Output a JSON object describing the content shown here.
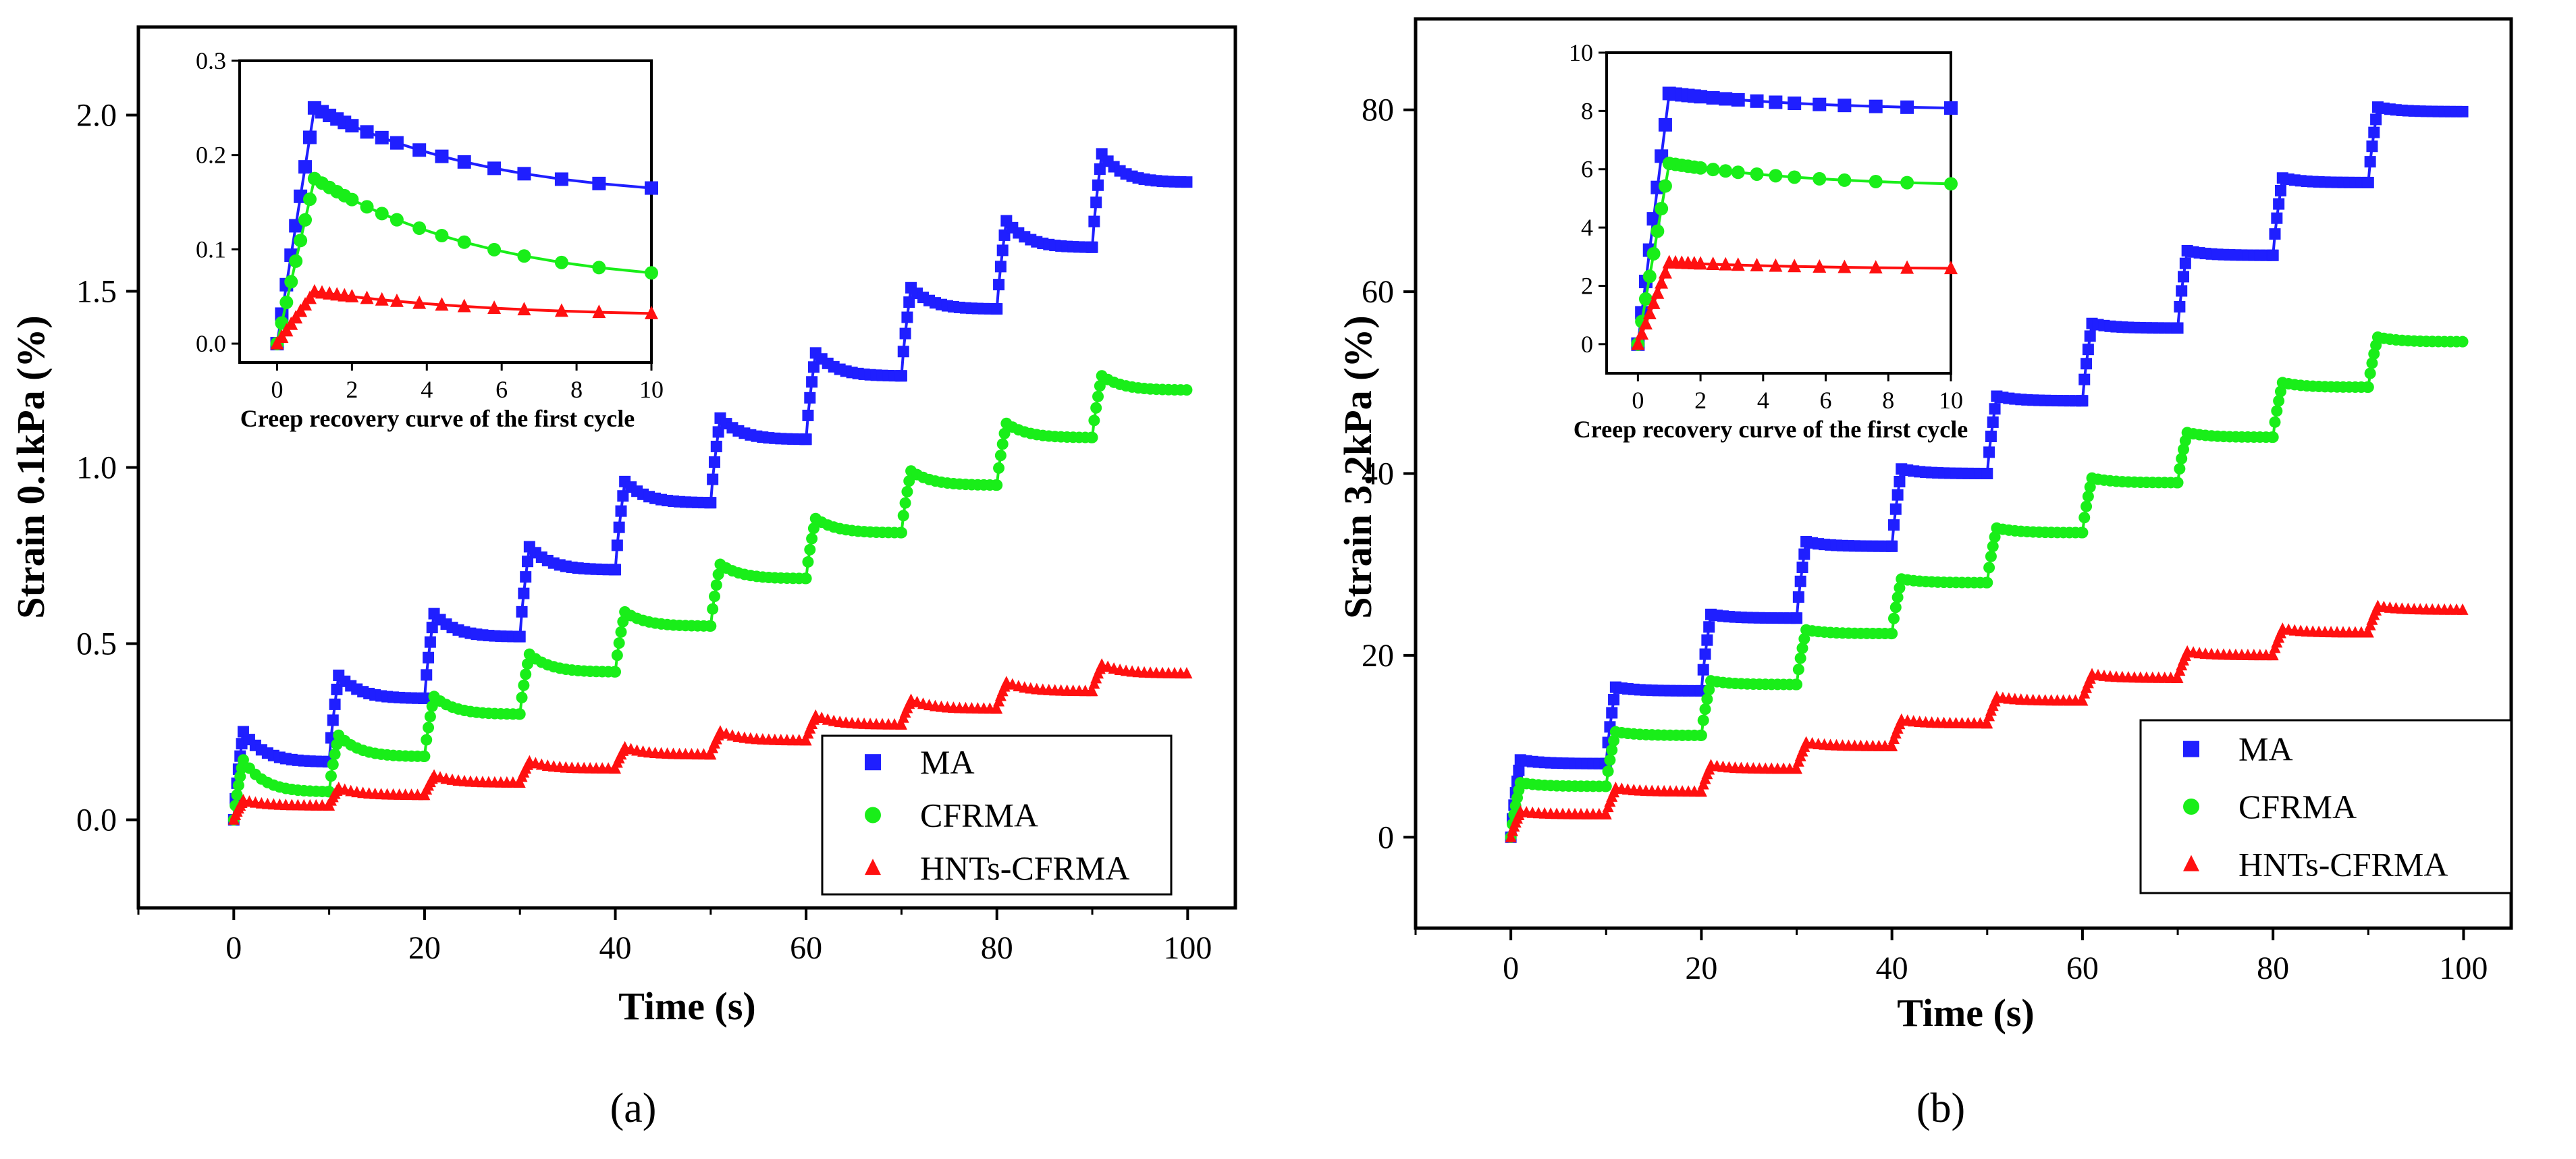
{
  "chart_data": [
    {
      "id": "a",
      "type": "scatter",
      "panel_label": "(a)",
      "xlabel": "Time (s)",
      "ylabel": "Strain 0.1kPa (%)",
      "xlim": [
        -10,
        105
      ],
      "ylim": [
        -0.25,
        2.25
      ],
      "xticks": [
        0,
        20,
        40,
        60,
        80,
        100
      ],
      "yticks": [
        0.0,
        0.5,
        1.0,
        1.5,
        2.0
      ],
      "legend": [
        "MA",
        "CFRMA",
        "HNTs-CFRMA"
      ],
      "legend_position": "bottom-right",
      "series": [
        {
          "name": "MA",
          "color": "#1f1fff",
          "marker": "square",
          "cycles": [
            {
              "start": 0.0,
              "peak": 0.25,
              "end": 0.165
            },
            {
              "start": 0.165,
              "peak": 0.41,
              "end": 0.345
            },
            {
              "start": 0.345,
              "peak": 0.585,
              "end": 0.52
            },
            {
              "start": 0.52,
              "peak": 0.775,
              "end": 0.71
            },
            {
              "start": 0.71,
              "peak": 0.96,
              "end": 0.9
            },
            {
              "start": 0.9,
              "peak": 1.14,
              "end": 1.08
            },
            {
              "start": 1.08,
              "peak": 1.325,
              "end": 1.26
            },
            {
              "start": 1.26,
              "peak": 1.51,
              "end": 1.45
            },
            {
              "start": 1.45,
              "peak": 1.7,
              "end": 1.625
            },
            {
              "start": 1.625,
              "peak": 1.89,
              "end": 1.81
            }
          ]
        },
        {
          "name": "CFRMA",
          "color": "#19ee19",
          "marker": "circle",
          "cycles": [
            {
              "start": 0.0,
              "peak": 0.17,
              "end": 0.08
            },
            {
              "start": 0.08,
              "peak": 0.24,
              "end": 0.18
            },
            {
              "start": 0.18,
              "peak": 0.35,
              "end": 0.3
            },
            {
              "start": 0.3,
              "peak": 0.47,
              "end": 0.42
            },
            {
              "start": 0.42,
              "peak": 0.59,
              "end": 0.55
            },
            {
              "start": 0.55,
              "peak": 0.725,
              "end": 0.685
            },
            {
              "start": 0.685,
              "peak": 0.855,
              "end": 0.815
            },
            {
              "start": 0.815,
              "peak": 0.99,
              "end": 0.95
            },
            {
              "start": 0.95,
              "peak": 1.125,
              "end": 1.085
            },
            {
              "start": 1.085,
              "peak": 1.26,
              "end": 1.22
            }
          ]
        },
        {
          "name": "HNTs-CFRMA",
          "color": "#ff1010",
          "marker": "triangle",
          "cycles": [
            {
              "start": 0.0,
              "peak": 0.055,
              "end": 0.04
            },
            {
              "start": 0.04,
              "peak": 0.09,
              "end": 0.07
            },
            {
              "start": 0.07,
              "peak": 0.125,
              "end": 0.105
            },
            {
              "start": 0.105,
              "peak": 0.165,
              "end": 0.145
            },
            {
              "start": 0.145,
              "peak": 0.205,
              "end": 0.185
            },
            {
              "start": 0.185,
              "peak": 0.25,
              "end": 0.225
            },
            {
              "start": 0.225,
              "peak": 0.295,
              "end": 0.27
            },
            {
              "start": 0.27,
              "peak": 0.34,
              "end": 0.315
            },
            {
              "start": 0.315,
              "peak": 0.39,
              "end": 0.365
            },
            {
              "start": 0.365,
              "peak": 0.44,
              "end": 0.415
            }
          ]
        }
      ],
      "inset": {
        "caption": "Creep recovery curve of the first cycle",
        "xlim": [
          -1,
          10
        ],
        "ylim": [
          -0.02,
          0.3
        ],
        "xticks": [
          0,
          2,
          4,
          6,
          8,
          10
        ],
        "yticks": [
          0.0,
          0.1,
          0.2,
          0.3
        ],
        "series": [
          {
            "name": "MA",
            "peak": 0.25,
            "end": 0.165
          },
          {
            "name": "CFRMA",
            "peak": 0.175,
            "end": 0.075
          },
          {
            "name": "HNTs-CFRMA",
            "peak": 0.055,
            "end": 0.032
          }
        ]
      }
    },
    {
      "id": "b",
      "type": "scatter",
      "panel_label": "(b)",
      "xlabel": "Time (s)",
      "ylabel": "Strain 3.2kPa (%)",
      "xlim": [
        -10,
        105
      ],
      "ylim": [
        -10,
        90
      ],
      "xticks": [
        0,
        20,
        40,
        60,
        80,
        100
      ],
      "yticks": [
        0,
        20,
        40,
        60,
        80
      ],
      "legend": [
        "MA",
        "CFRMA",
        "HNTs-CFRMA"
      ],
      "legend_position": "bottom-right",
      "series": [
        {
          "name": "MA",
          "color": "#1f1fff",
          "marker": "square",
          "cycles": [
            {
              "start": 0,
              "peak": 8.5,
              "end": 8.1
            },
            {
              "start": 8.1,
              "peak": 16.5,
              "end": 16.1
            },
            {
              "start": 16.1,
              "peak": 24.5,
              "end": 24.1
            },
            {
              "start": 24.1,
              "peak": 32.5,
              "end": 32.0
            },
            {
              "start": 32.0,
              "peak": 40.5,
              "end": 40.0
            },
            {
              "start": 40.0,
              "peak": 48.5,
              "end": 48.0
            },
            {
              "start": 48.0,
              "peak": 56.5,
              "end": 56.0
            },
            {
              "start": 56.0,
              "peak": 64.5,
              "end": 64.0
            },
            {
              "start": 64.0,
              "peak": 72.5,
              "end": 72.0
            },
            {
              "start": 72.0,
              "peak": 80.3,
              "end": 79.8
            }
          ]
        },
        {
          "name": "CFRMA",
          "color": "#19ee19",
          "marker": "circle",
          "cycles": [
            {
              "start": 0,
              "peak": 6.0,
              "end": 5.6
            },
            {
              "start": 5.6,
              "peak": 11.6,
              "end": 11.2
            },
            {
              "start": 11.2,
              "peak": 17.2,
              "end": 16.8
            },
            {
              "start": 16.8,
              "peak": 22.8,
              "end": 22.4
            },
            {
              "start": 22.4,
              "peak": 28.4,
              "end": 28.0
            },
            {
              "start": 28.0,
              "peak": 34.0,
              "end": 33.5
            },
            {
              "start": 33.5,
              "peak": 39.5,
              "end": 39.0
            },
            {
              "start": 39.0,
              "peak": 44.5,
              "end": 44.0
            },
            {
              "start": 44.0,
              "peak": 50.0,
              "end": 49.5
            },
            {
              "start": 49.5,
              "peak": 55.0,
              "end": 54.5
            }
          ]
        },
        {
          "name": "HNTs-CFRMA",
          "color": "#ff1010",
          "marker": "triangle",
          "cycles": [
            {
              "start": 0,
              "peak": 2.8,
              "end": 2.5
            },
            {
              "start": 2.5,
              "peak": 5.4,
              "end": 5.0
            },
            {
              "start": 5.0,
              "peak": 7.9,
              "end": 7.5
            },
            {
              "start": 7.5,
              "peak": 10.4,
              "end": 10.0
            },
            {
              "start": 10.0,
              "peak": 12.9,
              "end": 12.5
            },
            {
              "start": 12.5,
              "peak": 15.4,
              "end": 15.0
            },
            {
              "start": 15.0,
              "peak": 17.9,
              "end": 17.5
            },
            {
              "start": 17.5,
              "peak": 20.4,
              "end": 20.0
            },
            {
              "start": 20.0,
              "peak": 22.9,
              "end": 22.5
            },
            {
              "start": 22.5,
              "peak": 25.4,
              "end": 25.0
            }
          ]
        }
      ],
      "inset": {
        "caption": "Creep recovery curve of the first cycle",
        "xlim": [
          -1,
          10
        ],
        "ylim": [
          -1,
          10
        ],
        "xticks": [
          0,
          2,
          4,
          6,
          8,
          10
        ],
        "yticks": [
          0,
          2,
          4,
          6,
          8,
          10
        ],
        "series": [
          {
            "name": "MA",
            "peak": 8.6,
            "end": 8.1
          },
          {
            "name": "CFRMA",
            "peak": 6.2,
            "end": 5.5
          },
          {
            "name": "HNTs-CFRMA",
            "peak": 2.8,
            "end": 2.6
          }
        ]
      }
    }
  ]
}
